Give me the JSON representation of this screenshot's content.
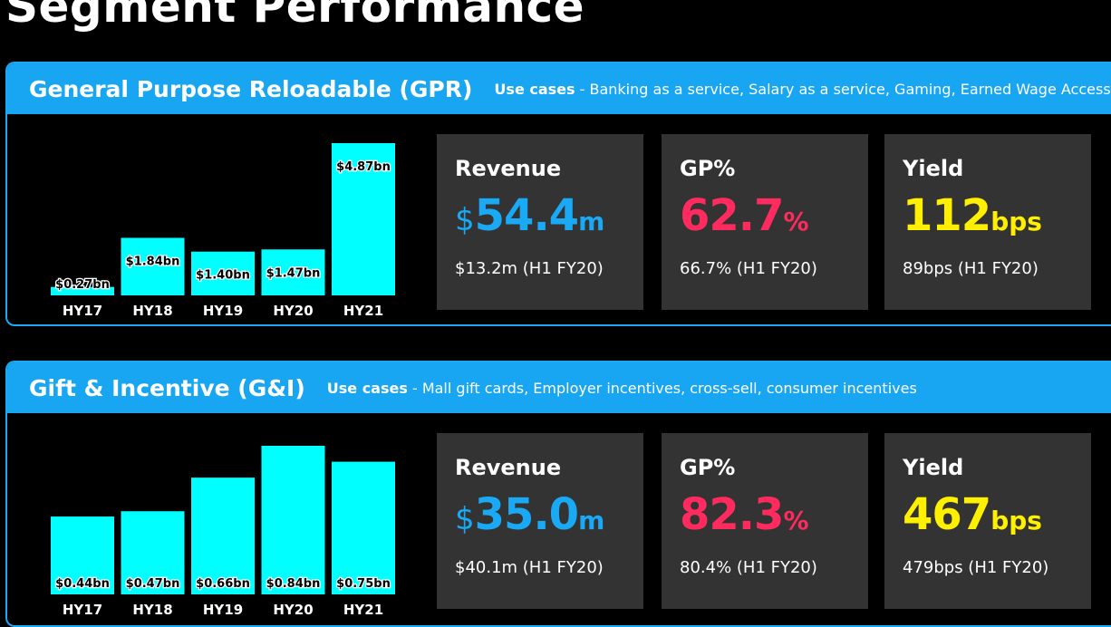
{
  "page_title": "Segment Performance",
  "segments": [
    {
      "name": "General Purpose Reloadable (GPR)",
      "use_cases_label": "Use cases",
      "use_cases_text": " - Banking as a service, Salary as a service, Gaming, Earned Wage Access, Neo-lenders",
      "metrics": [
        {
          "label": "Revenue",
          "prefix": "$",
          "number": "54.4",
          "suffix": "m",
          "prev": "$13.2m (H1 FY20)"
        },
        {
          "label": "GP%",
          "prefix": "",
          "number": "62.7",
          "suffix": "%",
          "prev": "66.7% (H1 FY20)"
        },
        {
          "label": "Yield",
          "prefix": "",
          "number": "112",
          "suffix": "bps",
          "prev": "89bps (H1 FY20)"
        }
      ]
    },
    {
      "name": "Gift & Incentive (G&I)",
      "use_cases_label": "Use cases",
      "use_cases_text": " - Mall gift cards, Employer incentives, cross-sell, consumer incentives",
      "metrics": [
        {
          "label": "Revenue",
          "prefix": "$",
          "number": "35.0",
          "suffix": "m",
          "prev": "$40.1m (H1 FY20)"
        },
        {
          "label": "GP%",
          "prefix": "",
          "number": "82.3",
          "suffix": "%",
          "prev": "80.4% (H1 FY20)"
        },
        {
          "label": "Yield",
          "prefix": "",
          "number": "467",
          "suffix": "bps",
          "prev": "479bps (H1 FY20)"
        }
      ]
    }
  ],
  "colors": {
    "accent": "#18a6f3",
    "bar": "#00ffff",
    "revenue": "#1aa9f5",
    "gp": "#ff2b5e",
    "yield": "#fff000",
    "card": "#333333"
  },
  "chart_data": [
    {
      "type": "bar",
      "categories": [
        "HY17",
        "HY18",
        "HY19",
        "HY20",
        "HY21"
      ],
      "values": [
        0.27,
        1.84,
        1.4,
        1.47,
        4.87
      ],
      "data_labels": [
        "$0.27bn",
        "$1.84bn",
        "$1.40bn",
        "$1.47bn",
        "$4.87bn"
      ],
      "ylim": [
        0,
        4.87
      ],
      "grid": false
    },
    {
      "type": "bar",
      "categories": [
        "HY17",
        "HY18",
        "HY19",
        "HY20",
        "HY21"
      ],
      "values": [
        0.44,
        0.47,
        0.66,
        0.84,
        0.75
      ],
      "data_labels": [
        "$0.44bn",
        "$0.47bn",
        "$0.66bn",
        "$0.84bn",
        "$0.75bn"
      ],
      "ylim": [
        0,
        0.84
      ],
      "grid": false
    }
  ]
}
